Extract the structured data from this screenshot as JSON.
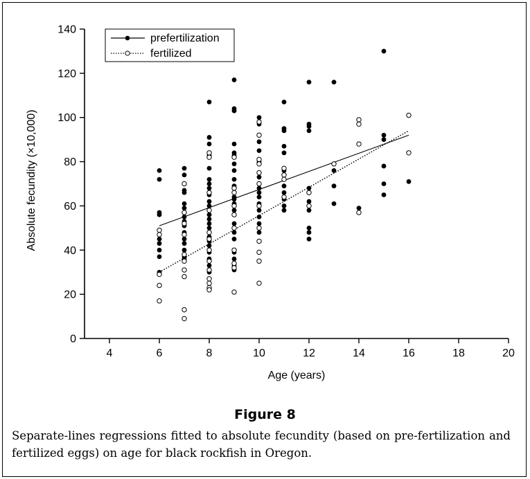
{
  "chart_data": {
    "type": "scatter",
    "xlabel": "Age (years)",
    "ylabel": "Absolute fecundity (×10,000)",
    "xlim": [
      3,
      20
    ],
    "ylim": [
      0,
      140
    ],
    "x_ticks": [
      4,
      6,
      8,
      10,
      12,
      14,
      16,
      18,
      20
    ],
    "y_ticks": [
      0,
      20,
      40,
      60,
      80,
      100,
      120,
      140
    ],
    "legend_position": "top-left",
    "grid": false,
    "series": [
      {
        "name": "prefertilization",
        "marker": "filled-circle",
        "line_style": "solid",
        "regression": [
          [
            6,
            51
          ],
          [
            16,
            92
          ]
        ],
        "points": [
          [
            6,
            76
          ],
          [
            6,
            72
          ],
          [
            6,
            57
          ],
          [
            6,
            56
          ],
          [
            6,
            49
          ],
          [
            6,
            47
          ],
          [
            6,
            45
          ],
          [
            6,
            43
          ],
          [
            6,
            40
          ],
          [
            6,
            37
          ],
          [
            6,
            30
          ],
          [
            7,
            77
          ],
          [
            7,
            74
          ],
          [
            7,
            67
          ],
          [
            7,
            66
          ],
          [
            7,
            61
          ],
          [
            7,
            59
          ],
          [
            7,
            55
          ],
          [
            7,
            53
          ],
          [
            7,
            51
          ],
          [
            7,
            48
          ],
          [
            7,
            45
          ],
          [
            7,
            43
          ],
          [
            7,
            40
          ],
          [
            7,
            38
          ],
          [
            7,
            37
          ],
          [
            7,
            36
          ],
          [
            8,
            107
          ],
          [
            8,
            91
          ],
          [
            8,
            88
          ],
          [
            8,
            83
          ],
          [
            8,
            77
          ],
          [
            8,
            72
          ],
          [
            8,
            70
          ],
          [
            8,
            68
          ],
          [
            8,
            65
          ],
          [
            8,
            62
          ],
          [
            8,
            60
          ],
          [
            8,
            58
          ],
          [
            8,
            56
          ],
          [
            8,
            54
          ],
          [
            8,
            52
          ],
          [
            8,
            50
          ],
          [
            8,
            48
          ],
          [
            8,
            46
          ],
          [
            8,
            44
          ],
          [
            8,
            42
          ],
          [
            8,
            39
          ],
          [
            8,
            36
          ],
          [
            8,
            33
          ],
          [
            8,
            30
          ],
          [
            9,
            117
          ],
          [
            9,
            104
          ],
          [
            9,
            103
          ],
          [
            9,
            88
          ],
          [
            9,
            84
          ],
          [
            9,
            83
          ],
          [
            9,
            79
          ],
          [
            9,
            76
          ],
          [
            9,
            72
          ],
          [
            9,
            69
          ],
          [
            9,
            64
          ],
          [
            9,
            63
          ],
          [
            9,
            61
          ],
          [
            9,
            58
          ],
          [
            9,
            56
          ],
          [
            9,
            52
          ],
          [
            9,
            48
          ],
          [
            9,
            45
          ],
          [
            9,
            39
          ],
          [
            9,
            36
          ],
          [
            9,
            33
          ],
          [
            9,
            31
          ],
          [
            10,
            100
          ],
          [
            10,
            97
          ],
          [
            10,
            89
          ],
          [
            10,
            85
          ],
          [
            10,
            80
          ],
          [
            10,
            75
          ],
          [
            10,
            73
          ],
          [
            10,
            70
          ],
          [
            10,
            68
          ],
          [
            10,
            66
          ],
          [
            10,
            64
          ],
          [
            10,
            61
          ],
          [
            10,
            58
          ],
          [
            10,
            55
          ],
          [
            10,
            52
          ],
          [
            10,
            48
          ],
          [
            10,
            44
          ],
          [
            11,
            107
          ],
          [
            11,
            95
          ],
          [
            11,
            94
          ],
          [
            11,
            87
          ],
          [
            11,
            84
          ],
          [
            11,
            76
          ],
          [
            11,
            69
          ],
          [
            11,
            66
          ],
          [
            11,
            63
          ],
          [
            11,
            60
          ],
          [
            11,
            58
          ],
          [
            12,
            116
          ],
          [
            12,
            97
          ],
          [
            12,
            96
          ],
          [
            12,
            94
          ],
          [
            12,
            68
          ],
          [
            12,
            66
          ],
          [
            12,
            62
          ],
          [
            12,
            58
          ],
          [
            12,
            50
          ],
          [
            12,
            48
          ],
          [
            12,
            45
          ],
          [
            13,
            116
          ],
          [
            13,
            76
          ],
          [
            13,
            69
          ],
          [
            13,
            61
          ],
          [
            14,
            59
          ],
          [
            15,
            130
          ],
          [
            15,
            92
          ],
          [
            15,
            90
          ],
          [
            15,
            78
          ],
          [
            15,
            70
          ],
          [
            15,
            65
          ],
          [
            16,
            71
          ]
        ]
      },
      {
        "name": "fertilized",
        "marker": "open-circle",
        "line_style": "dotted",
        "regression": [
          [
            6,
            30
          ],
          [
            16,
            94
          ]
        ],
        "points": [
          [
            6,
            49
          ],
          [
            6,
            47
          ],
          [
            6,
            29
          ],
          [
            6,
            24
          ],
          [
            6,
            17
          ],
          [
            7,
            70
          ],
          [
            7,
            57
          ],
          [
            7,
            52
          ],
          [
            7,
            47
          ],
          [
            7,
            38
          ],
          [
            7,
            35
          ],
          [
            7,
            31
          ],
          [
            7,
            28
          ],
          [
            7,
            13
          ],
          [
            7,
            9
          ],
          [
            8,
            84
          ],
          [
            8,
            82
          ],
          [
            8,
            66
          ],
          [
            8,
            58
          ],
          [
            8,
            48
          ],
          [
            8,
            45
          ],
          [
            8,
            40
          ],
          [
            8,
            35
          ],
          [
            8,
            31
          ],
          [
            8,
            27
          ],
          [
            8,
            25
          ],
          [
            8,
            23
          ],
          [
            8,
            22
          ],
          [
            9,
            82
          ],
          [
            9,
            68
          ],
          [
            9,
            66
          ],
          [
            9,
            60
          ],
          [
            9,
            56
          ],
          [
            9,
            50
          ],
          [
            9,
            40
          ],
          [
            9,
            34
          ],
          [
            9,
            32
          ],
          [
            9,
            21
          ],
          [
            10,
            98
          ],
          [
            10,
            92
          ],
          [
            10,
            81
          ],
          [
            10,
            79
          ],
          [
            10,
            75
          ],
          [
            10,
            70
          ],
          [
            10,
            60
          ],
          [
            10,
            50
          ],
          [
            10,
            44
          ],
          [
            10,
            39
          ],
          [
            10,
            35
          ],
          [
            10,
            25
          ],
          [
            11,
            77
          ],
          [
            11,
            74
          ],
          [
            11,
            72
          ],
          [
            11,
            64
          ],
          [
            12,
            66
          ],
          [
            12,
            60
          ],
          [
            13,
            79
          ],
          [
            14,
            99
          ],
          [
            14,
            97
          ],
          [
            14,
            88
          ],
          [
            14,
            57
          ],
          [
            16,
            101
          ],
          [
            16,
            84
          ]
        ]
      }
    ]
  },
  "figure_label": "Figure 8",
  "caption": "Separate-lines regressions fitted to absolute fecundity (based on pre-fertilization and fertilized eggs) on age for black rockfish in Oregon."
}
